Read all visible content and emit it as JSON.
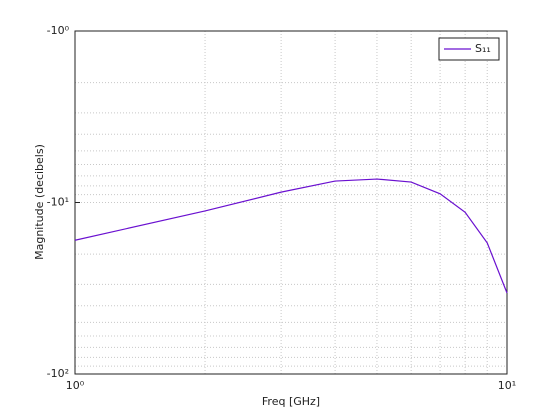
{
  "chart_data": {
    "type": "line",
    "xlabel": "Freq [GHz]",
    "ylabel": "Magnitude (decibels)",
    "x": [
      1,
      2,
      3,
      4,
      5,
      6,
      7,
      8,
      9,
      10
    ],
    "series": [
      {
        "name": "S₁₁",
        "color": "#6a10d0",
        "values": [
          -16.6,
          -11.2,
          -8.7,
          -7.5,
          -7.3,
          -7.6,
          -8.9,
          -11.4,
          -17.2,
          -33.7
        ]
      }
    ],
    "xscale": "log",
    "yscale": "log",
    "xlim": [
      1,
      10
    ],
    "ylim": [
      -1,
      -100
    ],
    "xticks": [
      {
        "value": 1,
        "label": "10⁰"
      },
      {
        "value": 10,
        "label": "10¹"
      }
    ],
    "yticks": [
      {
        "value": -1,
        "label": "-10⁰"
      },
      {
        "value": -10,
        "label": "-10¹"
      },
      {
        "value": -100,
        "label": "-10²"
      }
    ],
    "grid": true,
    "minor_grid": true,
    "legend": "top-right"
  }
}
